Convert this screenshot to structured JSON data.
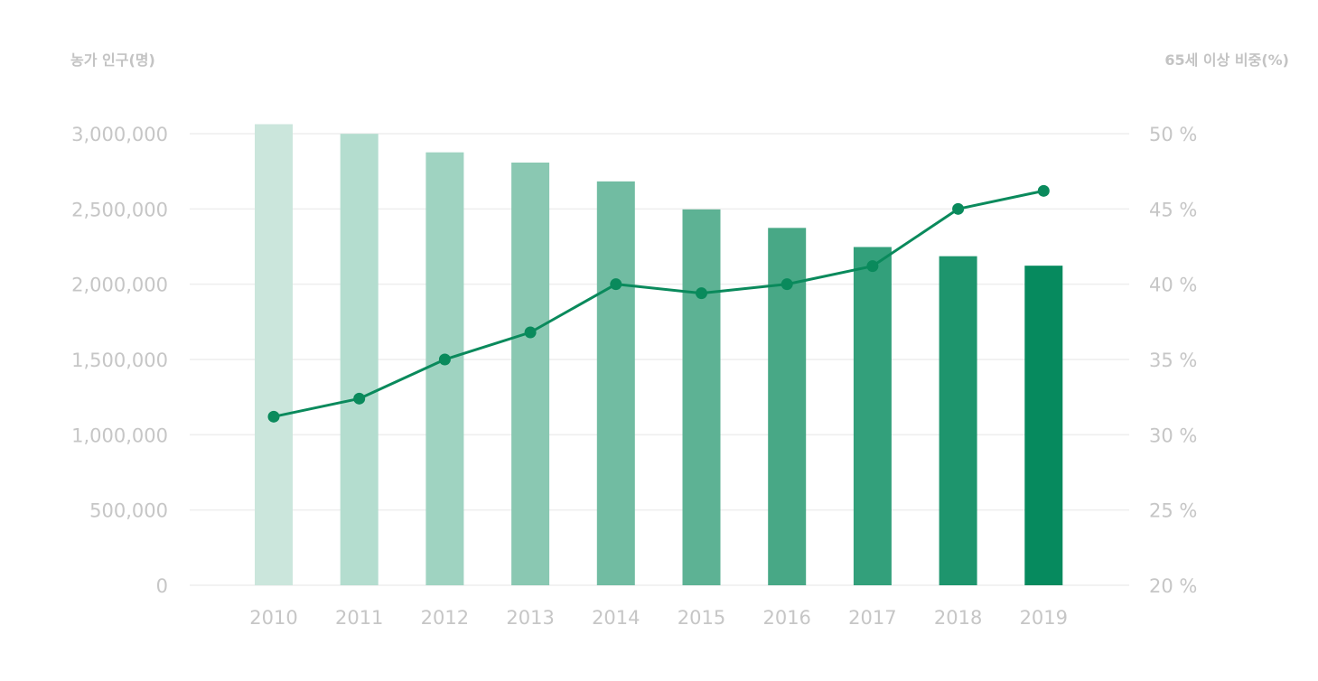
{
  "chart_data": {
    "type": "bar",
    "title": "",
    "categories": [
      "2010",
      "2011",
      "2012",
      "2013",
      "2014",
      "2015",
      "2016",
      "2017",
      "2018",
      "2019"
    ],
    "series": [
      {
        "type": "bar",
        "axis": "left",
        "values": [
          3063000,
          2999000,
          2876000,
          2808000,
          2683000,
          2497000,
          2374000,
          2247000,
          2186000,
          2123000
        ]
      },
      {
        "type": "line",
        "axis": "right",
        "values": [
          31.2,
          32.4,
          35.0,
          36.8,
          40.0,
          39.4,
          40.0,
          41.2,
          45.0,
          46.2
        ]
      }
    ],
    "ylabel_left": "농가 인구(명)",
    "ylabel_right": "65세 이상 비중(%)",
    "ylim_left": [
      0,
      3000000
    ],
    "ylim_right": [
      20,
      50
    ],
    "yticks_left": [
      "0",
      "500,000",
      "1,000,000",
      "1,500,000",
      "2,000,000",
      "2,500,000",
      "3,000,000"
    ],
    "yticks_right": [
      "20 %",
      "25 %",
      "30 %",
      "35 %",
      "40 %",
      "45 %",
      "50 %"
    ],
    "grid": true,
    "legend": "none",
    "colors": {
      "bar_gradient": [
        "#cbe6dc",
        "#b4ddcf",
        "#9fd3c1",
        "#8ac8b2",
        "#71bca2",
        "#5db294",
        "#48a886",
        "#33a07b",
        "#1e956d",
        "#068a5e"
      ],
      "line": "#0a8a5c",
      "grid": "#eeeeee",
      "tick_text": "#c6c6c6",
      "axis_title": "#c3c3c3"
    }
  }
}
